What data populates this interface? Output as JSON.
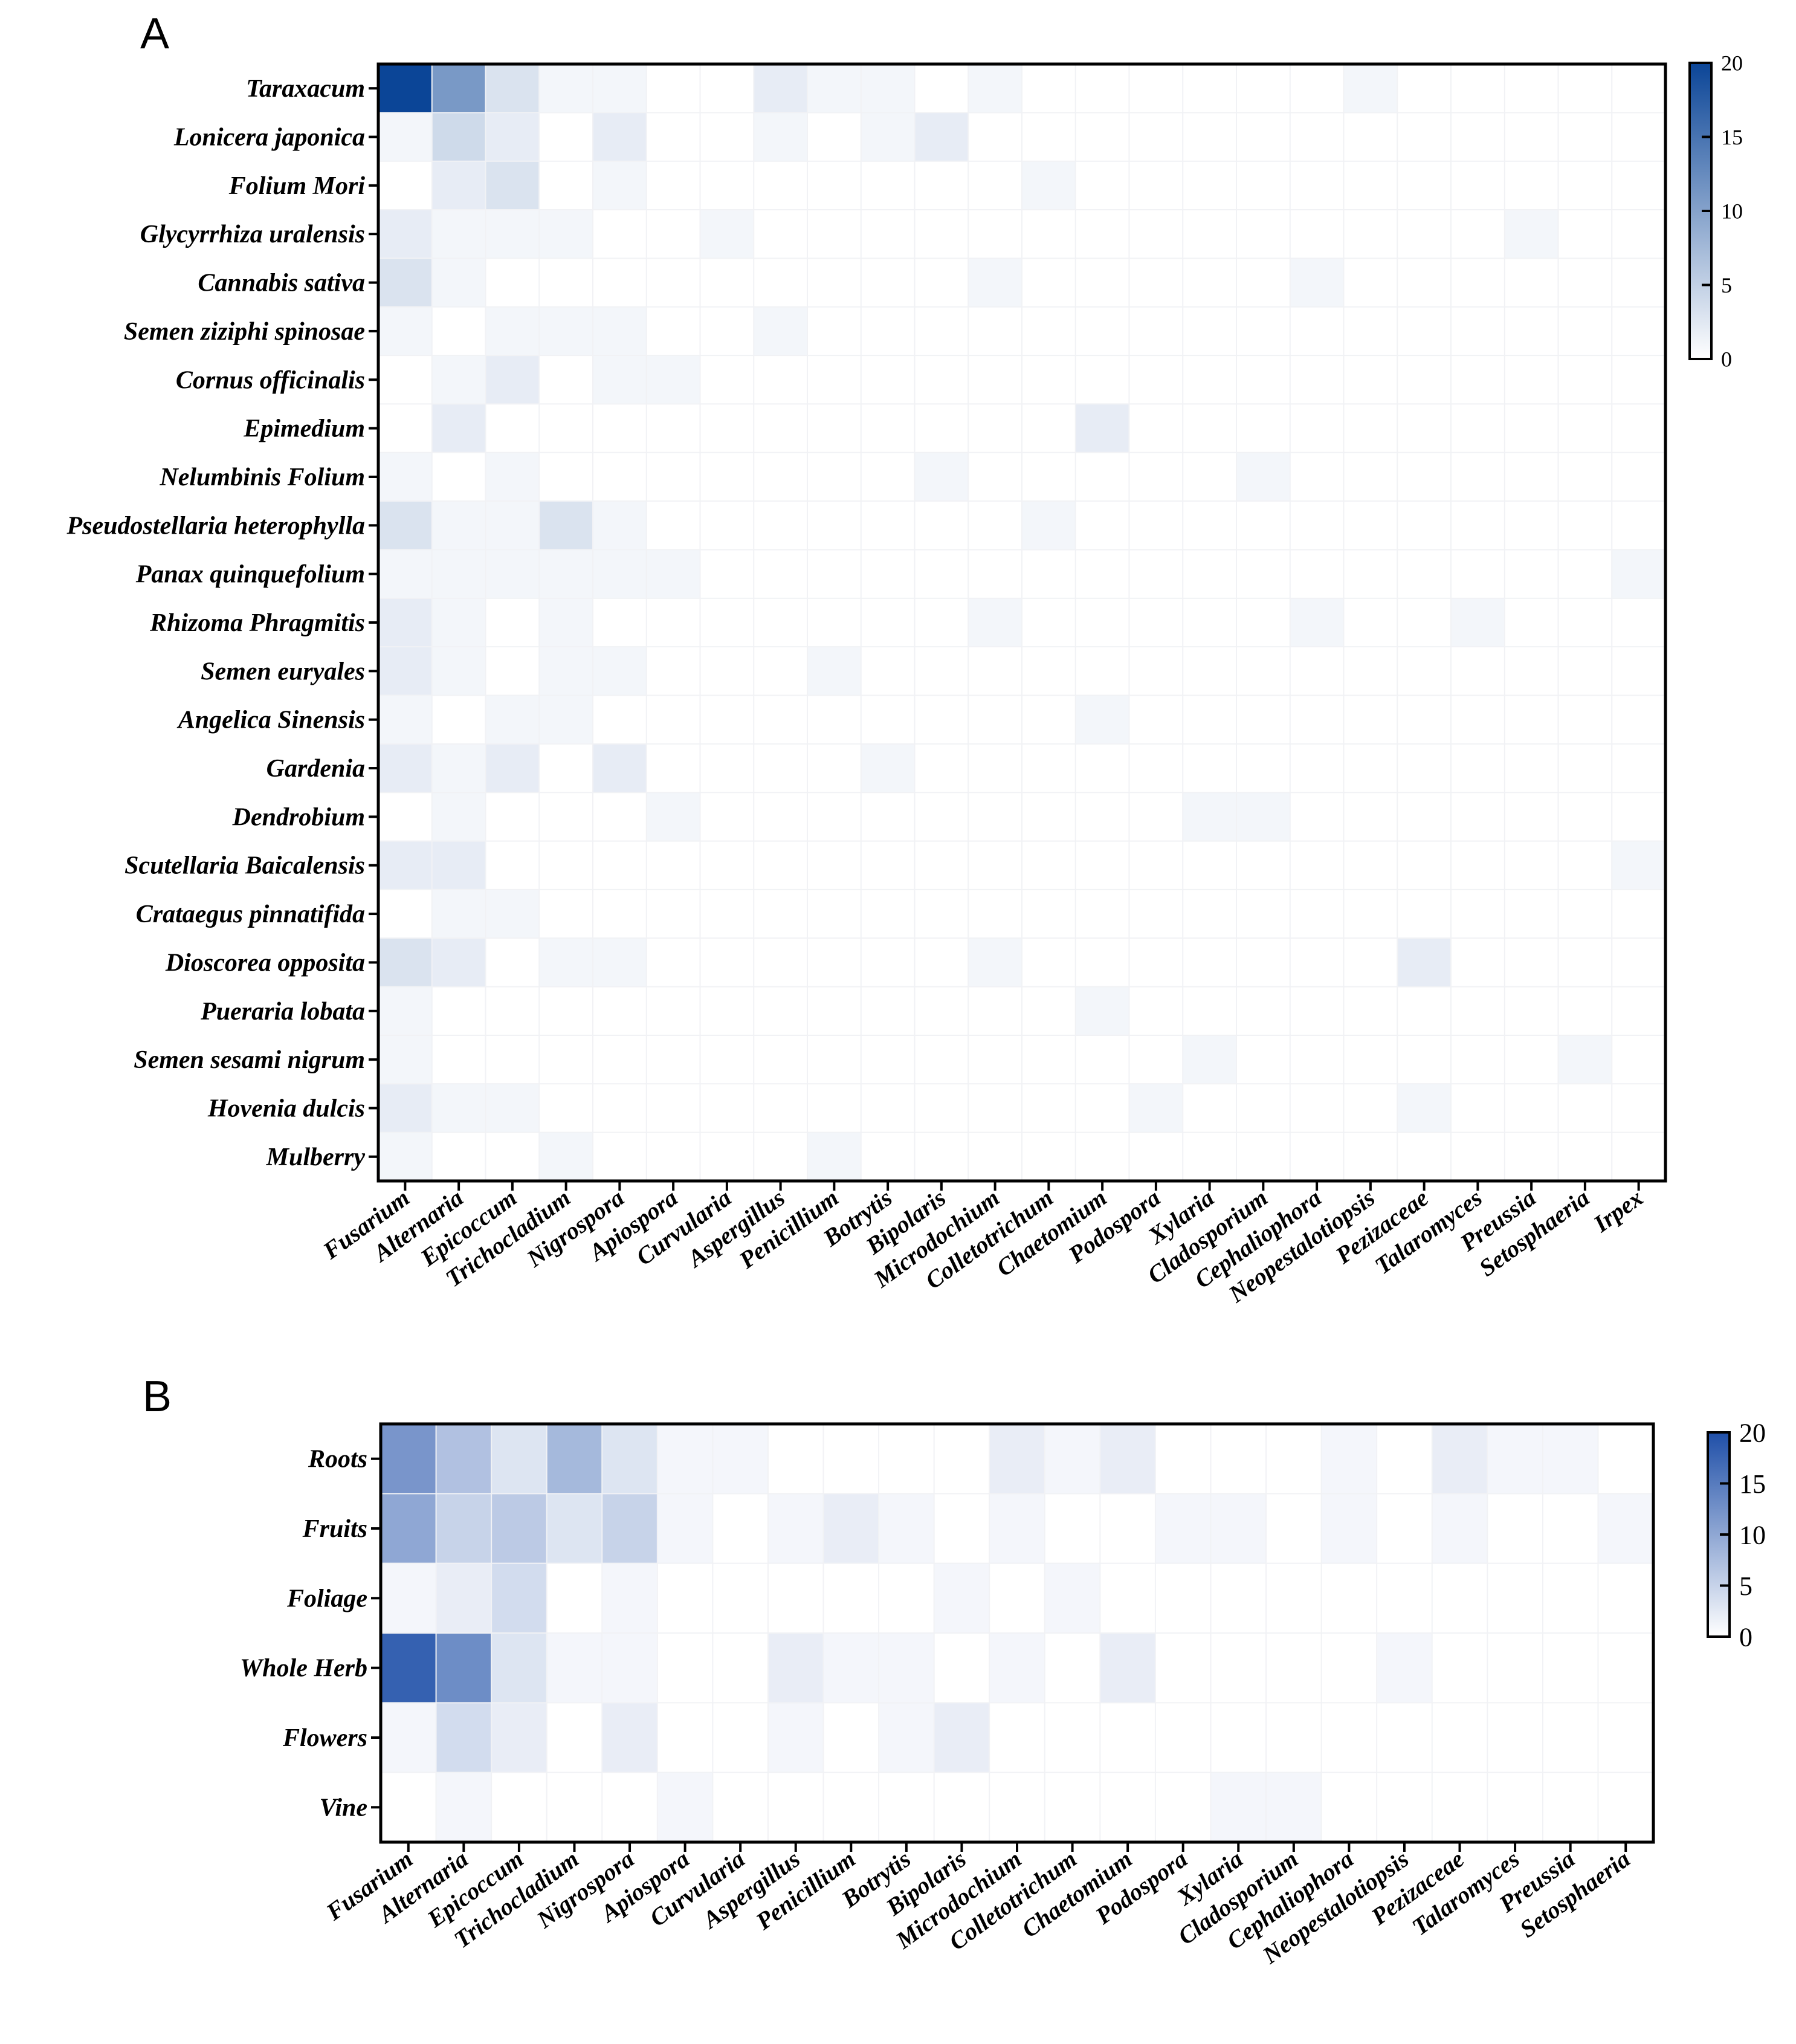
{
  "chart_data": [
    {
      "panel": "A",
      "type": "heatmap",
      "rows": [
        "Taraxacum",
        "Lonicera japonica",
        "Folium Mori",
        "Glycyrrhiza uralensis",
        "Cannabis sativa",
        "Semen ziziphi spinosae",
        "Cornus officinalis",
        "Epimedium",
        "Nelumbinis Folium",
        "Pseudostellaria heterophylla",
        "Panax quinquefolium",
        "Rhizoma Phragmitis",
        "Semen euryales",
        "Angelica Sinensis",
        "Gardenia",
        "Dendrobium",
        "Scutellaria Baicalensis",
        "Crataegus pinnatifida",
        "Dioscorea opposita",
        "Pueraria lobata",
        "Semen sesami nigrum",
        "Hovenia dulcis",
        "Mulberry"
      ],
      "columns": [
        "Fusarium",
        "Alternaria",
        "Epicoccum",
        "Trichocladium",
        "Nigrospora",
        "Apiospora",
        "Curvularia",
        "Aspergillus",
        "Penicillium",
        "Botrytis",
        "Bipolaris",
        "Microdochium",
        "Colletotrichum",
        "Chaetomium",
        "Podospora",
        "Xylaria",
        "Cladosporium",
        "Cephaliophora",
        "Neopestalotiopsis",
        "Pezizaceae",
        "Talaromyces",
        "Preussia",
        "Setosphaeria",
        "Irpex"
      ],
      "values": [
        [
          20,
          11,
          3,
          1,
          1,
          0,
          0,
          2,
          1,
          1,
          0,
          1,
          0,
          0,
          0,
          0,
          0,
          0,
          1,
          0,
          0,
          0,
          0,
          0
        ],
        [
          1,
          4,
          2,
          0,
          2,
          0,
          0,
          1,
          0,
          1,
          2,
          0,
          0,
          0,
          0,
          0,
          0,
          0,
          0,
          0,
          0,
          0,
          0,
          0
        ],
        [
          0,
          2,
          3,
          0,
          1,
          0,
          0,
          0,
          0,
          0,
          0,
          0,
          1,
          0,
          0,
          0,
          0,
          0,
          0,
          0,
          0,
          0,
          0,
          0
        ],
        [
          2,
          1,
          1,
          1,
          0,
          0,
          1,
          0,
          0,
          0,
          0,
          0,
          0,
          0,
          0,
          0,
          0,
          0,
          0,
          0,
          0,
          1,
          0,
          0
        ],
        [
          3,
          1,
          0,
          0,
          0,
          0,
          0,
          0,
          0,
          0,
          0,
          1,
          0,
          0,
          0,
          0,
          0,
          1,
          0,
          0,
          0,
          0,
          0,
          0
        ],
        [
          1,
          0,
          1,
          1,
          1,
          0,
          0,
          1,
          0,
          0,
          0,
          0,
          0,
          0,
          0,
          0,
          0,
          0,
          0,
          0,
          0,
          0,
          0,
          0
        ],
        [
          0,
          1,
          2,
          0,
          1,
          1,
          0,
          0,
          0,
          0,
          0,
          0,
          0,
          0,
          0,
          0,
          0,
          0,
          0,
          0,
          0,
          0,
          0,
          0
        ],
        [
          0,
          2,
          0,
          0,
          0,
          0,
          0,
          0,
          0,
          0,
          0,
          0,
          0,
          2,
          0,
          0,
          0,
          0,
          0,
          0,
          0,
          0,
          0,
          0
        ],
        [
          1,
          0,
          1,
          0,
          0,
          0,
          0,
          0,
          0,
          0,
          1,
          0,
          0,
          0,
          0,
          0,
          1,
          0,
          0,
          0,
          0,
          0,
          0,
          0
        ],
        [
          3,
          1,
          1,
          3,
          1,
          0,
          0,
          0,
          0,
          0,
          0,
          0,
          1,
          0,
          0,
          0,
          0,
          0,
          0,
          0,
          0,
          0,
          0,
          0
        ],
        [
          1,
          1,
          1,
          1,
          1,
          1,
          0,
          0,
          0,
          0,
          0,
          0,
          0,
          0,
          0,
          0,
          0,
          0,
          0,
          0,
          0,
          0,
          0,
          1
        ],
        [
          2,
          1,
          0,
          1,
          0,
          0,
          0,
          0,
          0,
          0,
          0,
          1,
          0,
          0,
          0,
          0,
          0,
          1,
          0,
          0,
          1,
          0,
          0,
          0
        ],
        [
          2,
          1,
          0,
          1,
          1,
          0,
          0,
          0,
          1,
          0,
          0,
          0,
          0,
          0,
          0,
          0,
          0,
          0,
          0,
          0,
          0,
          0,
          0,
          0
        ],
        [
          1,
          0,
          1,
          1,
          0,
          0,
          0,
          0,
          0,
          0,
          0,
          0,
          0,
          1,
          0,
          0,
          0,
          0,
          0,
          0,
          0,
          0,
          0,
          0
        ],
        [
          2,
          1,
          2,
          0,
          2,
          0,
          0,
          0,
          0,
          1,
          0,
          0,
          0,
          0,
          0,
          0,
          0,
          0,
          0,
          0,
          0,
          0,
          0,
          0
        ],
        [
          0,
          1,
          0,
          0,
          0,
          1,
          0,
          0,
          0,
          0,
          0,
          0,
          0,
          0,
          0,
          1,
          1,
          0,
          0,
          0,
          0,
          0,
          0,
          0
        ],
        [
          2,
          2,
          0,
          0,
          0,
          0,
          0,
          0,
          0,
          0,
          0,
          0,
          0,
          0,
          0,
          0,
          0,
          0,
          0,
          0,
          0,
          0,
          0,
          1
        ],
        [
          0,
          1,
          1,
          0,
          0,
          0,
          0,
          0,
          0,
          0,
          0,
          0,
          0,
          0,
          0,
          0,
          0,
          0,
          0,
          0,
          0,
          0,
          0,
          0
        ],
        [
          3,
          2,
          0,
          1,
          1,
          0,
          0,
          0,
          0,
          0,
          0,
          1,
          0,
          0,
          0,
          0,
          0,
          0,
          0,
          2,
          0,
          0,
          0,
          0
        ],
        [
          1,
          0,
          0,
          0,
          0,
          0,
          0,
          0,
          0,
          0,
          0,
          0,
          0,
          1,
          0,
          0,
          0,
          0,
          0,
          0,
          0,
          0,
          0,
          0
        ],
        [
          1,
          0,
          0,
          0,
          0,
          0,
          0,
          0,
          0,
          0,
          0,
          0,
          0,
          0,
          0,
          1,
          0,
          0,
          0,
          0,
          0,
          0,
          1,
          0
        ],
        [
          2,
          1,
          1,
          0,
          0,
          0,
          0,
          0,
          0,
          0,
          0,
          0,
          0,
          0,
          1,
          0,
          0,
          0,
          0,
          1,
          0,
          0,
          0,
          0
        ],
        [
          1,
          0,
          0,
          1,
          0,
          0,
          0,
          0,
          1,
          0,
          0,
          0,
          0,
          0,
          0,
          0,
          0,
          0,
          0,
          0,
          0,
          0,
          0,
          0
        ]
      ],
      "colorbar": {
        "ticks": [
          "0",
          "5",
          "10",
          "15",
          "20"
        ],
        "range": [
          0,
          20
        ],
        "low_color": "#ffffff",
        "high_color": "#0b4597"
      }
    },
    {
      "panel": "B",
      "type": "heatmap",
      "rows": [
        "Roots",
        "Fruits",
        "Foliage",
        "Whole Herb",
        "Flowers",
        "Vine"
      ],
      "columns": [
        "Fusarium",
        "Alternaria",
        "Epicoccum",
        "Trichocladium",
        "Nigrospora",
        "Apiospora",
        "Curvularia",
        "Aspergillus",
        "Penicillium",
        "Botrytis",
        "Bipolaris",
        "Microdochium",
        "Colletotrichum",
        "Chaetomium",
        "Podospora",
        "Xylaria",
        "Cladosporium",
        "Cephaliophora",
        "Neopestalotiopsis",
        "Pezizaceae",
        "Talaromyces",
        "Preussia",
        "Setosphaeria"
      ],
      "values": [
        [
          12,
          7,
          3,
          8,
          3,
          1,
          1,
          0,
          0,
          0,
          0,
          2,
          1,
          2,
          0,
          0,
          0,
          1,
          0,
          2,
          1,
          1,
          0
        ],
        [
          10,
          5,
          6,
          3,
          5,
          1,
          0,
          1,
          2,
          1,
          0,
          1,
          0,
          0,
          1,
          1,
          0,
          1,
          0,
          1,
          0,
          0,
          1
        ],
        [
          1,
          2,
          4,
          0,
          1,
          0,
          0,
          0,
          0,
          0,
          1,
          0,
          1,
          0,
          0,
          0,
          0,
          0,
          0,
          0,
          0,
          0,
          0
        ],
        [
          18,
          13,
          3,
          1,
          1,
          0,
          0,
          2,
          1,
          1,
          0,
          1,
          0,
          2,
          0,
          0,
          0,
          0,
          1,
          0,
          0,
          0,
          0
        ],
        [
          1,
          4,
          2,
          0,
          2,
          0,
          0,
          1,
          0,
          1,
          2,
          0,
          0,
          0,
          0,
          0,
          0,
          0,
          0,
          0,
          0,
          0,
          0
        ],
        [
          0,
          1,
          0,
          0,
          0,
          1,
          0,
          0,
          0,
          0,
          0,
          0,
          0,
          0,
          0,
          1,
          1,
          0,
          0,
          0,
          0,
          0,
          0
        ]
      ],
      "colorbar": {
        "ticks": [
          "0",
          "5",
          "10",
          "15",
          "20"
        ],
        "range": [
          0,
          20
        ],
        "low_color": "#ffffff",
        "high_color": "#1f4fa8"
      }
    }
  ],
  "panels": {
    "a_label": "A",
    "b_label": "B"
  }
}
